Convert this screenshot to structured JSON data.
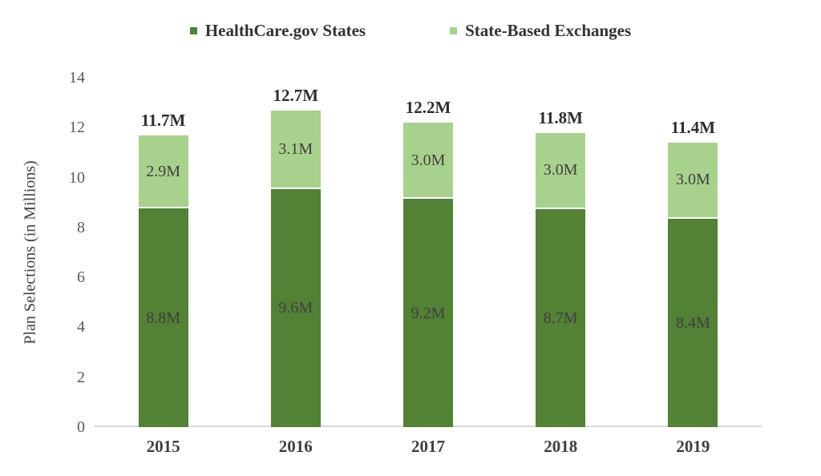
{
  "chart_data": {
    "type": "bar",
    "stacked": true,
    "categories": [
      "2015",
      "2016",
      "2017",
      "2018",
      "2019"
    ],
    "series": [
      {
        "name": "HealthCare.gov States",
        "color": "#538135",
        "values": [
          8.8,
          9.6,
          9.2,
          8.7,
          8.4
        ],
        "labels": [
          "8.8M",
          "9.6M",
          "9.2M",
          "8.7M",
          "8.4M"
        ]
      },
      {
        "name": "State-Based Exchanges",
        "color": "#a9d18e",
        "values": [
          2.9,
          3.1,
          3.0,
          3.0,
          3.0
        ],
        "labels": [
          "2.9M",
          "3.1M",
          "3.0M",
          "3.0M",
          "3.0M"
        ]
      }
    ],
    "totals": [
      11.7,
      12.7,
      12.2,
      11.8,
      11.4
    ],
    "total_labels": [
      "11.7M",
      "12.7M",
      "12.2M",
      "11.8M",
      "11.4M"
    ],
    "xlabel": "",
    "ylabel": "Plan Selections (in Millions)",
    "ylim": [
      0,
      14
    ],
    "yticks": [
      0,
      2,
      4,
      6,
      8,
      10,
      12,
      14
    ],
    "legend_position": "top",
    "grid": false,
    "colors": {
      "axis_line": "#d9d9d9",
      "tick_text": "#595959",
      "label_text": "#3f3f3f",
      "total_text": "#2d2d2d"
    }
  }
}
